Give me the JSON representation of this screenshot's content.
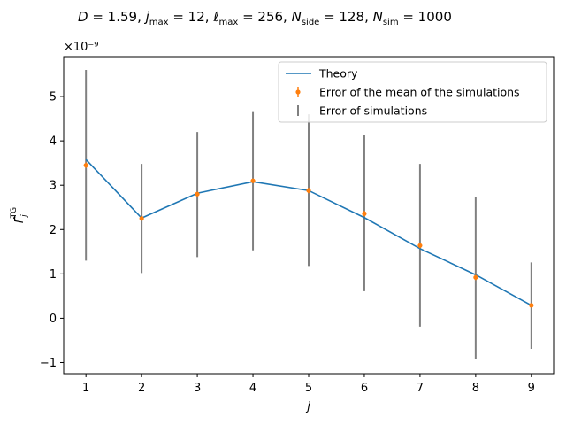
{
  "chart_data": {
    "type": "line",
    "title": "D = 1.59,  j_max = 12,  ℓ_max = 256,  N_side = 128, N_sim = 1000",
    "xlabel": "j",
    "ylabel": "Γ̂_j^TG",
    "y_offset_label": "×10⁻⁹",
    "xlim": [
      0.6,
      9.4
    ],
    "ylim": [
      -1.25,
      5.9
    ],
    "grid": false,
    "legend_placement": "upper-right",
    "x_ticks": [
      1,
      2,
      3,
      4,
      5,
      6,
      7,
      8,
      9
    ],
    "y_ticks": [
      -1,
      0,
      1,
      2,
      3,
      4,
      5
    ],
    "series": [
      {
        "name": "Theory",
        "kind": "line",
        "color": "#1f77b4",
        "x": [
          1,
          2,
          3,
          4,
          5,
          6,
          7,
          8,
          9
        ],
        "y": [
          3.58,
          2.26,
          2.82,
          3.08,
          2.88,
          2.27,
          1.57,
          0.98,
          0.29
        ]
      },
      {
        "name": "Error of the mean of the simulations",
        "kind": "errorbar-points",
        "color": "#ff7f0e",
        "x": [
          1,
          2,
          3,
          4,
          5,
          6,
          7,
          8,
          9
        ],
        "y": [
          3.45,
          2.25,
          2.8,
          3.1,
          2.88,
          2.36,
          1.64,
          0.92,
          0.29
        ],
        "err": [
          0.06,
          0.04,
          0.05,
          0.05,
          0.06,
          0.06,
          0.06,
          0.06,
          0.04
        ]
      },
      {
        "name": "Error of simulations",
        "kind": "error-range",
        "color": "#808080",
        "x": [
          1,
          2,
          3,
          4,
          5,
          6,
          7,
          8,
          9
        ],
        "low": [
          1.3,
          1.02,
          1.38,
          1.53,
          1.18,
          0.61,
          -0.19,
          -0.92,
          -0.69
        ],
        "high": [
          5.6,
          3.48,
          4.2,
          4.67,
          4.6,
          4.13,
          3.48,
          2.73,
          1.26
        ]
      }
    ]
  }
}
